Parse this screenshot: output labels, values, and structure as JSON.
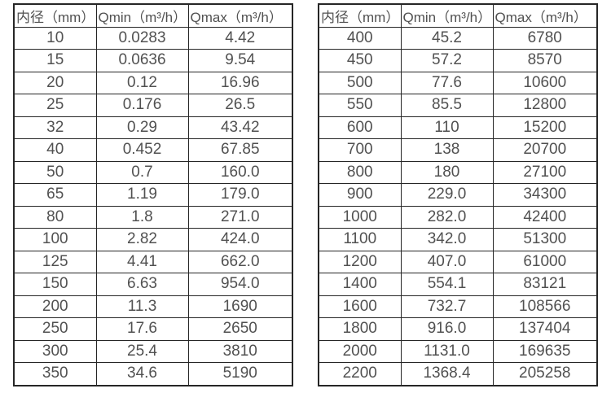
{
  "colors": {
    "background": "#ffffff",
    "border": "#262626",
    "text": "#515151"
  },
  "chart_data": [
    {
      "type": "table",
      "name": "flow-rate-table-small-diameters",
      "headers": [
        "内径（mm）",
        "Qmin（m³/h）",
        "Qmax（m³/h）"
      ],
      "rows": [
        [
          "10",
          "0.0283",
          "4.42"
        ],
        [
          "15",
          "0.0636",
          "9.54"
        ],
        [
          "20",
          "0.12",
          "16.96"
        ],
        [
          "25",
          "0.176",
          "26.5"
        ],
        [
          "32",
          "0.29",
          "43.42"
        ],
        [
          "40",
          "0.452",
          "67.85"
        ],
        [
          "50",
          "0.7",
          "160.0"
        ],
        [
          "65",
          "1.19",
          "179.0"
        ],
        [
          "80",
          "1.8",
          "271.0"
        ],
        [
          "100",
          "2.82",
          "424.0"
        ],
        [
          "125",
          "4.41",
          "662.0"
        ],
        [
          "150",
          "6.63",
          "954.0"
        ],
        [
          "200",
          "11.3",
          "1690"
        ],
        [
          "250",
          "17.6",
          "2650"
        ],
        [
          "300",
          "25.4",
          "3810"
        ],
        [
          "350",
          "34.6",
          "5190"
        ]
      ]
    },
    {
      "type": "table",
      "name": "flow-rate-table-large-diameters",
      "headers": [
        "内径（mm）",
        "Qmin（m³/h）",
        "Qmax（m³/h）"
      ],
      "rows": [
        [
          "400",
          "45.2",
          "6780"
        ],
        [
          "450",
          "57.2",
          "8570"
        ],
        [
          "500",
          "77.6",
          "10600"
        ],
        [
          "550",
          "85.5",
          "12800"
        ],
        [
          "600",
          "110",
          "15200"
        ],
        [
          "700",
          "138",
          "20700"
        ],
        [
          "800",
          "180",
          "27100"
        ],
        [
          "900",
          "229.0",
          "34300"
        ],
        [
          "1000",
          "282.0",
          "42400"
        ],
        [
          "1100",
          "342.0",
          "51300"
        ],
        [
          "1200",
          "407.0",
          "61000"
        ],
        [
          "1400",
          "554.1",
          "83121"
        ],
        [
          "1600",
          "732.7",
          "108566"
        ],
        [
          "1800",
          "916.0",
          "137404"
        ],
        [
          "2000",
          "1131.0",
          "169635"
        ],
        [
          "2200",
          "1368.4",
          "205258"
        ]
      ]
    }
  ]
}
